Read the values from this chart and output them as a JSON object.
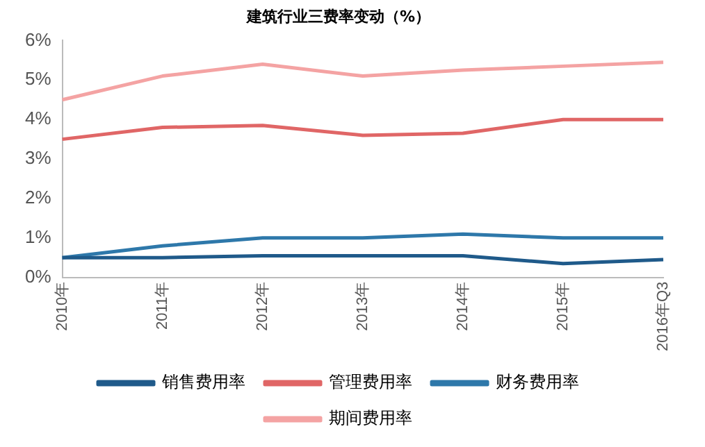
{
  "chart_data": {
    "type": "line",
    "title": "建筑行业三费率变动（%）",
    "categories": [
      "2010年",
      "2011年",
      "2012年",
      "2013年",
      "2014年",
      "2015年",
      "2016年Q3"
    ],
    "series": [
      {
        "name": "销售费用率",
        "color": "#1f5a8a",
        "values": [
          0.5,
          0.5,
          0.55,
          0.55,
          0.55,
          0.35,
          0.45
        ]
      },
      {
        "name": "管理费用率",
        "color": "#e06666",
        "values": [
          3.5,
          3.8,
          3.85,
          3.6,
          3.65,
          4.0,
          4.0
        ]
      },
      {
        "name": "财务费用率",
        "color": "#2e78aa",
        "values": [
          0.5,
          0.8,
          1.0,
          1.0,
          1.1,
          1.0,
          1.0
        ]
      },
      {
        "name": "期间费用率",
        "color": "#f4a3a3",
        "values": [
          4.5,
          5.1,
          5.4,
          5.1,
          5.25,
          5.35,
          5.45
        ]
      }
    ],
    "ylim": [
      0,
      6
    ],
    "yticks": [
      {
        "value": 0,
        "label": "0%"
      },
      {
        "value": 1,
        "label": "1%"
      },
      {
        "value": 2,
        "label": "2%"
      },
      {
        "value": 3,
        "label": "3%"
      },
      {
        "value": 4,
        "label": "4%"
      },
      {
        "value": 5,
        "label": "5%"
      },
      {
        "value": 6,
        "label": "6%"
      }
    ],
    "grid": false,
    "legend": "bottom",
    "marker": "none",
    "line_style": "solid"
  }
}
